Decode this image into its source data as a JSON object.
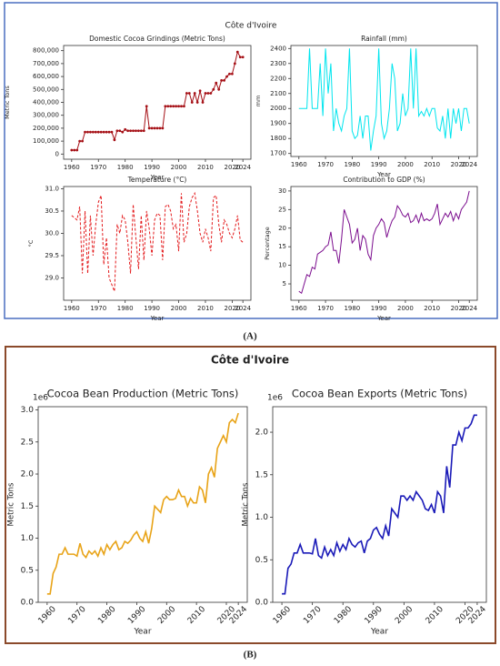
{
  "panels": [
    {
      "title": "Côte d'Ivoire",
      "label": "(A)"
    },
    {
      "title": "Côte d'Ivoire",
      "label": "(B)"
    }
  ],
  "chart_data": [
    {
      "type": "line",
      "title": "Domestic Cocoa Grindings (Metric Tons)",
      "x_label": "Year",
      "y_label": "Metric Tons",
      "color": "#a50f15",
      "marker": "o",
      "linestyle": "solid",
      "x": [
        1960,
        1961,
        1962,
        1963,
        1964,
        1965,
        1966,
        1967,
        1968,
        1969,
        1970,
        1971,
        1972,
        1973,
        1974,
        1975,
        1976,
        1977,
        1978,
        1979,
        1980,
        1981,
        1982,
        1983,
        1984,
        1985,
        1986,
        1987,
        1988,
        1989,
        1990,
        1991,
        1992,
        1993,
        1994,
        1995,
        1996,
        1997,
        1998,
        1999,
        2000,
        2001,
        2002,
        2003,
        2004,
        2005,
        2006,
        2007,
        2008,
        2009,
        2010,
        2011,
        2012,
        2013,
        2014,
        2015,
        2016,
        2017,
        2018,
        2019,
        2020,
        2021,
        2022,
        2023,
        2024
      ],
      "values": [
        30000,
        30000,
        30000,
        100000,
        100000,
        170000,
        170000,
        170000,
        170000,
        170000,
        170000,
        170000,
        170000,
        170000,
        170000,
        170000,
        110000,
        180000,
        180000,
        170000,
        190000,
        180000,
        180000,
        180000,
        180000,
        180000,
        180000,
        180000,
        370000,
        200000,
        200000,
        200000,
        200000,
        200000,
        200000,
        370000,
        370000,
        370000,
        370000,
        370000,
        370000,
        370000,
        370000,
        470000,
        470000,
        400000,
        470000,
        400000,
        490000,
        400000,
        470000,
        470000,
        470000,
        500000,
        550000,
        500000,
        570000,
        570000,
        600000,
        620000,
        620000,
        700000,
        790000,
        750000,
        750000
      ],
      "xlim": [
        1957,
        2027
      ],
      "xticks": [
        1960,
        1970,
        1980,
        1990,
        2000,
        2010,
        2020,
        2024
      ],
      "ylim": [
        -40000,
        840000
      ],
      "yticks": [
        0,
        {
          "value": 100000,
          "label": "100,000"
        },
        {
          "value": 200000,
          "label": "200,000"
        },
        {
          "value": 300000,
          "label": "300,000"
        },
        {
          "value": 400000,
          "label": "400,000"
        },
        {
          "value": 500000,
          "label": "500,000"
        },
        {
          "value": 600000,
          "label": "600,000"
        },
        {
          "value": 700000,
          "label": "700,000"
        },
        {
          "value": 800000,
          "label": "800,000"
        }
      ]
    },
    {
      "type": "line",
      "title": "Rainfall (mm)",
      "x_label": "Year",
      "y_label": "mm",
      "color": "#00e5ee",
      "linestyle": "solid",
      "x": [
        1960,
        1961,
        1962,
        1963,
        1964,
        1965,
        1966,
        1967,
        1968,
        1969,
        1970,
        1971,
        1972,
        1973,
        1974,
        1975,
        1976,
        1977,
        1978,
        1979,
        1980,
        1981,
        1982,
        1983,
        1984,
        1985,
        1986,
        1987,
        1988,
        1989,
        1990,
        1991,
        1992,
        1993,
        1994,
        1995,
        1996,
        1997,
        1998,
        1999,
        2000,
        2001,
        2002,
        2003,
        2004,
        2005,
        2006,
        2007,
        2008,
        2009,
        2010,
        2011,
        2012,
        2013,
        2014,
        2015,
        2016,
        2017,
        2018,
        2019,
        2020,
        2021,
        2022,
        2023,
        2024
      ],
      "values": [
        2000,
        2000,
        2000,
        2000,
        2400,
        2000,
        2000,
        2000,
        2300,
        1950,
        2400,
        2100,
        2300,
        1850,
        2000,
        1900,
        1850,
        1950,
        2000,
        2400,
        1850,
        1800,
        1820,
        1950,
        1800,
        1950,
        1950,
        1720,
        1850,
        1950,
        2400,
        1900,
        1800,
        1850,
        2000,
        2300,
        2200,
        1850,
        1900,
        2100,
        1950,
        2000,
        2400,
        2000,
        2400,
        1950,
        1980,
        1950,
        2000,
        1950,
        2000,
        2000,
        1870,
        1850,
        1950,
        1800,
        2000,
        1800,
        2000,
        1900,
        2000,
        1850,
        2000,
        2000,
        1900
      ],
      "xlim": [
        1957,
        2027
      ],
      "xticks": [
        1960,
        1970,
        1980,
        1990,
        2000,
        2010,
        2020,
        2024
      ],
      "ylim": [
        1680,
        2420
      ],
      "yticks": [
        1700,
        1800,
        1900,
        2000,
        2100,
        2200,
        2300,
        2400
      ]
    },
    {
      "type": "line",
      "title": "Temperature (°C)",
      "x_label": "Year",
      "y_label": "°C",
      "color": "#e31a1c",
      "linestyle": "dashed",
      "x": [
        1960,
        1961,
        1962,
        1963,
        1964,
        1965,
        1966,
        1967,
        1968,
        1969,
        1970,
        1971,
        1972,
        1973,
        1974,
        1975,
        1976,
        1977,
        1978,
        1979,
        1980,
        1981,
        1982,
        1983,
        1984,
        1985,
        1986,
        1987,
        1988,
        1989,
        1990,
        1991,
        1992,
        1993,
        1994,
        1995,
        1996,
        1997,
        1998,
        1999,
        2000,
        2001,
        2002,
        2003,
        2004,
        2005,
        2006,
        2007,
        2008,
        2009,
        2010,
        2011,
        2012,
        2013,
        2014,
        2015,
        2016,
        2017,
        2018,
        2019,
        2020,
        2021,
        2022,
        2023,
        2024
      ],
      "values": [
        30.4,
        30.35,
        30.3,
        30.6,
        29.1,
        30.5,
        29.1,
        30.4,
        29.5,
        30.2,
        30.7,
        30.85,
        29.3,
        29.9,
        29.0,
        28.85,
        28.7,
        30.2,
        30.0,
        30.4,
        30.3,
        29.8,
        29.1,
        30.65,
        29.9,
        29.2,
        30.4,
        29.4,
        30.5,
        30.1,
        29.5,
        30.3,
        30.45,
        30.4,
        29.4,
        30.6,
        30.65,
        30.5,
        30.1,
        30.2,
        29.6,
        30.9,
        29.8,
        30.0,
        30.6,
        30.8,
        30.9,
        30.5,
        30.0,
        29.8,
        30.1,
        29.9,
        29.6,
        30.8,
        30.85,
        30.2,
        29.8,
        30.3,
        30.2,
        30.0,
        29.9,
        30.1,
        30.4,
        29.85,
        29.8
      ],
      "xlim": [
        1957,
        2027
      ],
      "xticks": [
        1960,
        1970,
        1980,
        1990,
        2000,
        2010,
        2020,
        2024
      ],
      "ylim": [
        28.5,
        31.05
      ],
      "yticks": [
        {
          "value": 29,
          "label": "29.0"
        },
        29.5,
        {
          "value": 30,
          "label": "30.0"
        },
        30.5,
        {
          "value": 31,
          "label": "31.0"
        }
      ]
    },
    {
      "type": "line",
      "title": "Contribution to GDP (%)",
      "x_label": "Year",
      "y_label": "Percentage",
      "color": "#7b0d8e",
      "linestyle": "solid",
      "x": [
        1960,
        1961,
        1962,
        1963,
        1964,
        1965,
        1966,
        1967,
        1968,
        1969,
        1970,
        1971,
        1972,
        1973,
        1974,
        1975,
        1976,
        1977,
        1978,
        1979,
        1980,
        1981,
        1982,
        1983,
        1984,
        1985,
        1986,
        1987,
        1988,
        1989,
        1990,
        1991,
        1992,
        1993,
        1994,
        1995,
        1996,
        1997,
        1998,
        1999,
        2000,
        2001,
        2002,
        2003,
        2004,
        2005,
        2006,
        2007,
        2008,
        2009,
        2010,
        2011,
        2012,
        2013,
        2014,
        2015,
        2016,
        2017,
        2018,
        2019,
        2020,
        2021,
        2022,
        2023,
        2024
      ],
      "values": [
        3,
        2.5,
        5,
        7.5,
        7,
        9.5,
        9,
        13,
        13.5,
        14,
        15,
        15.5,
        19,
        14,
        14,
        10.5,
        17,
        25,
        23,
        21,
        16,
        17,
        20,
        14,
        18,
        17,
        13,
        11.5,
        18,
        20,
        21,
        22.5,
        21.5,
        17.5,
        20,
        22,
        23,
        26,
        25,
        23.5,
        23,
        24,
        21.5,
        22,
        23.5,
        21.5,
        24,
        22,
        22.5,
        22,
        22.5,
        24,
        26.5,
        21,
        22.5,
        24,
        23,
        24.5,
        22,
        24,
        22.5,
        25,
        26,
        27,
        30
      ],
      "xlim": [
        1957,
        2027
      ],
      "xticks": [
        1960,
        1970,
        1980,
        1990,
        2000,
        2010,
        2020,
        2024
      ],
      "ylim": [
        0.6,
        31.2
      ],
      "yticks": [
        5,
        10,
        15,
        20,
        25,
        30
      ]
    },
    {
      "type": "line",
      "title": "Cocoa Bean Production (Metric Tons)",
      "x_label": "Year",
      "y_label": "Metric Tons",
      "offset_label": "1e6",
      "color": "#e8a317",
      "linestyle": "solid",
      "x": [
        1960,
        1961,
        1962,
        1963,
        1964,
        1965,
        1966,
        1967,
        1968,
        1969,
        1970,
        1971,
        1972,
        1973,
        1974,
        1975,
        1976,
        1977,
        1978,
        1979,
        1980,
        1981,
        1982,
        1983,
        1984,
        1985,
        1986,
        1987,
        1988,
        1989,
        1990,
        1991,
        1992,
        1993,
        1994,
        1995,
        1996,
        1997,
        1998,
        1999,
        2000,
        2001,
        2002,
        2003,
        2004,
        2005,
        2006,
        2007,
        2008,
        2009,
        2010,
        2011,
        2012,
        2013,
        2014,
        2015,
        2016,
        2017,
        2018,
        2019,
        2020,
        2021,
        2022,
        2023,
        2024
      ],
      "values": [
        0.13,
        0.13,
        0.45,
        0.55,
        0.75,
        0.75,
        0.85,
        0.75,
        0.75,
        0.75,
        0.72,
        0.92,
        0.75,
        0.7,
        0.8,
        0.75,
        0.8,
        0.72,
        0.85,
        0.75,
        0.9,
        0.82,
        0.9,
        0.95,
        0.82,
        0.85,
        0.95,
        0.92,
        0.97,
        1.05,
        1.1,
        1.0,
        0.95,
        1.1,
        0.92,
        1.15,
        1.5,
        1.45,
        1.4,
        1.6,
        1.65,
        1.6,
        1.6,
        1.62,
        1.75,
        1.65,
        1.65,
        1.5,
        1.62,
        1.55,
        1.55,
        1.8,
        1.75,
        1.55,
        2.0,
        2.1,
        1.95,
        2.4,
        2.5,
        2.6,
        2.5,
        2.8,
        2.85,
        2.8,
        2.95
      ],
      "xlim": [
        1957,
        2027
      ],
      "xticks": [
        1960,
        1970,
        1980,
        1990,
        2000,
        2010,
        2020,
        2024
      ],
      "ylim": [
        0,
        3.05
      ],
      "yticks": [
        {
          "value": 0,
          "label": "0.0"
        },
        0.5,
        {
          "value": 1,
          "label": "1.0"
        },
        1.5,
        {
          "value": 2,
          "label": "2.0"
        },
        2.5,
        {
          "value": 3,
          "label": "3.0"
        }
      ]
    },
    {
      "type": "line",
      "title": "Cocoa Bean Exports (Metric Tons)",
      "x_label": "Year",
      "y_label": "Metric Tons",
      "offset_label": "1e6",
      "color": "#1a1ab8",
      "linestyle": "solid",
      "x": [
        1960,
        1961,
        1962,
        1963,
        1964,
        1965,
        1966,
        1967,
        1968,
        1969,
        1970,
        1971,
        1972,
        1973,
        1974,
        1975,
        1976,
        1977,
        1978,
        1979,
        1980,
        1981,
        1982,
        1983,
        1984,
        1985,
        1986,
        1987,
        1988,
        1989,
        1990,
        1991,
        1992,
        1993,
        1994,
        1995,
        1996,
        1997,
        1998,
        1999,
        2000,
        2001,
        2002,
        2003,
        2004,
        2005,
        2006,
        2007,
        2008,
        2009,
        2010,
        2011,
        2012,
        2013,
        2014,
        2015,
        2016,
        2017,
        2018,
        2019,
        2020,
        2021,
        2022,
        2023,
        2024
      ],
      "values": [
        0.1,
        0.1,
        0.4,
        0.45,
        0.58,
        0.58,
        0.68,
        0.58,
        0.58,
        0.58,
        0.57,
        0.75,
        0.55,
        0.52,
        0.65,
        0.55,
        0.62,
        0.55,
        0.7,
        0.6,
        0.68,
        0.62,
        0.75,
        0.68,
        0.65,
        0.7,
        0.72,
        0.58,
        0.72,
        0.75,
        0.85,
        0.88,
        0.8,
        0.75,
        0.9,
        0.78,
        1.1,
        1.05,
        1.0,
        1.25,
        1.25,
        1.2,
        1.25,
        1.2,
        1.3,
        1.25,
        1.2,
        1.1,
        1.08,
        1.15,
        1.05,
        1.3,
        1.25,
        1.05,
        1.6,
        1.35,
        1.85,
        1.85,
        2.0,
        1.9,
        2.05,
        2.05,
        2.1,
        2.2,
        2.2
      ],
      "xlim": [
        1957,
        2027
      ],
      "xticks": [
        1960,
        1970,
        1980,
        1990,
        2000,
        2010,
        2020,
        2024
      ],
      "ylim": [
        0,
        2.3
      ],
      "yticks": [
        {
          "value": 0,
          "label": "0.0"
        },
        0.5,
        {
          "value": 1,
          "label": "1.0"
        },
        1.5,
        {
          "value": 2,
          "label": "2.0"
        }
      ]
    }
  ]
}
